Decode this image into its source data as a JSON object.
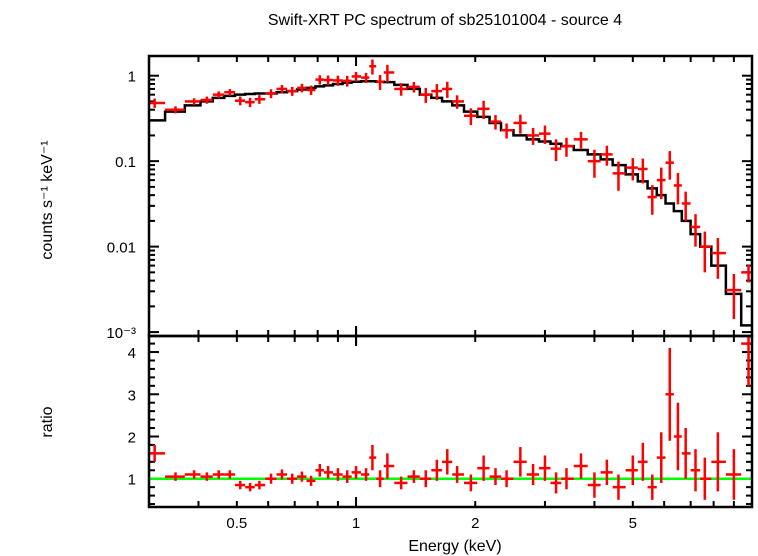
{
  "chart_data": [
    {
      "type": "scatter",
      "title": "Swift-XRT PC spectrum of sb25101004 - source 4",
      "xlabel": "",
      "ylabel": "counts s⁻¹ keV⁻¹",
      "xscale": "log",
      "yscale": "log",
      "xlim": [
        0.3,
        10
      ],
      "ylim": [
        0.0009,
        1.7
      ],
      "ytick_labels": [
        "1",
        "0.1",
        "0.01",
        "10⁻³"
      ],
      "ytick_values": [
        1,
        0.1,
        0.01,
        0.001
      ],
      "colors": {
        "data": "#ff0000",
        "model": "#000000"
      },
      "energy": [
        0.31,
        0.35,
        0.39,
        0.42,
        0.45,
        0.48,
        0.51,
        0.54,
        0.57,
        0.61,
        0.65,
        0.69,
        0.73,
        0.77,
        0.81,
        0.85,
        0.9,
        0.95,
        1.0,
        1.06,
        1.1,
        1.15,
        1.2,
        1.3,
        1.4,
        1.5,
        1.6,
        1.7,
        1.8,
        1.95,
        2.1,
        2.25,
        2.4,
        2.6,
        2.8,
        3.0,
        3.2,
        3.4,
        3.7,
        4.0,
        4.3,
        4.6,
        5.0,
        5.3,
        5.6,
        5.9,
        6.2,
        6.5,
        6.8,
        7.2,
        7.6,
        8.2,
        9.0,
        9.8
      ],
      "rate": [
        0.48,
        0.4,
        0.5,
        0.52,
        0.6,
        0.64,
        0.51,
        0.49,
        0.53,
        0.62,
        0.7,
        0.66,
        0.72,
        0.68,
        0.9,
        0.89,
        0.88,
        0.87,
        0.98,
        0.95,
        1.29,
        0.85,
        1.09,
        0.7,
        0.74,
        0.6,
        0.66,
        0.7,
        0.5,
        0.34,
        0.41,
        0.29,
        0.23,
        0.28,
        0.2,
        0.21,
        0.14,
        0.15,
        0.18,
        0.1,
        0.12,
        0.072,
        0.084,
        0.081,
        0.038,
        0.06,
        0.096,
        0.052,
        0.032,
        0.017,
        0.01,
        0.0084,
        0.0031,
        0.005
      ],
      "model": [
        0.3,
        0.38,
        0.45,
        0.5,
        0.55,
        0.58,
        0.6,
        0.61,
        0.62,
        0.62,
        0.64,
        0.66,
        0.69,
        0.72,
        0.75,
        0.77,
        0.8,
        0.83,
        0.85,
        0.86,
        0.86,
        0.85,
        0.84,
        0.78,
        0.7,
        0.6,
        0.55,
        0.5,
        0.45,
        0.38,
        0.33,
        0.28,
        0.23,
        0.2,
        0.18,
        0.17,
        0.16,
        0.15,
        0.135,
        0.12,
        0.105,
        0.09,
        0.07,
        0.058,
        0.048,
        0.04,
        0.032,
        0.026,
        0.02,
        0.014,
        0.01,
        0.006,
        0.0028,
        0.0012
      ]
    },
    {
      "type": "scatter",
      "xlabel": "Energy (keV)",
      "ylabel": "ratio",
      "xscale": "log",
      "yscale": "linear",
      "xlim": [
        0.3,
        10
      ],
      "ylim": [
        0.33,
        4.38
      ],
      "xtick_labels": [
        "0.5",
        "1",
        "2",
        "5"
      ],
      "xtick_values": [
        0.5,
        1,
        2,
        5
      ],
      "ytick_labels": [
        "1",
        "2",
        "3",
        "4"
      ],
      "ytick_values": [
        1,
        2,
        3,
        4
      ],
      "reference_line": 1,
      "colors": {
        "data": "#ff0000",
        "reference": "#00ff00"
      },
      "ratio": [
        1.6,
        1.05,
        1.1,
        1.05,
        1.1,
        1.1,
        0.85,
        0.8,
        0.85,
        1.0,
        1.1,
        1.0,
        1.05,
        0.95,
        1.2,
        1.15,
        1.1,
        1.05,
        1.15,
        1.1,
        1.5,
        1.0,
        1.3,
        0.9,
        1.05,
        1.0,
        1.2,
        1.4,
        1.1,
        0.9,
        1.25,
        1.05,
        1.0,
        1.4,
        1.1,
        1.25,
        0.9,
        1.0,
        1.3,
        0.85,
        1.15,
        0.8,
        1.2,
        1.4,
        0.8,
        1.5,
        3.0,
        2.0,
        1.6,
        1.2,
        1.0,
        1.4,
        1.1,
        4.2
      ],
      "ratio_err": [
        0.2,
        0.1,
        0.1,
        0.1,
        0.1,
        0.1,
        0.1,
        0.1,
        0.1,
        0.12,
        0.12,
        0.12,
        0.12,
        0.12,
        0.15,
        0.15,
        0.15,
        0.15,
        0.15,
        0.15,
        0.3,
        0.2,
        0.3,
        0.15,
        0.15,
        0.2,
        0.25,
        0.3,
        0.2,
        0.2,
        0.3,
        0.2,
        0.2,
        0.35,
        0.25,
        0.3,
        0.25,
        0.25,
        0.3,
        0.3,
        0.3,
        0.3,
        0.35,
        0.45,
        0.3,
        0.6,
        1.1,
        0.8,
        0.6,
        0.5,
        0.5,
        0.7,
        0.6,
        1.0
      ]
    }
  ]
}
